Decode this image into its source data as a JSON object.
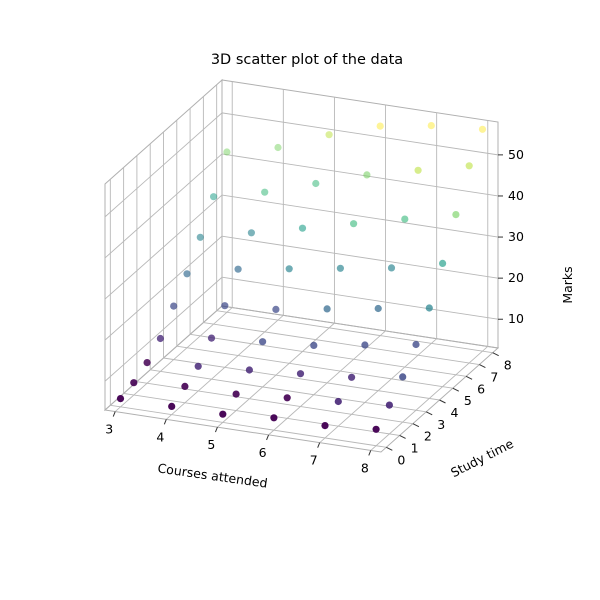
{
  "chart_data": {
    "type": "scatter",
    "title": "3D scatter plot of the data",
    "xlabel": "Courses attended",
    "ylabel": "Study time",
    "zlabel": "Marks",
    "xlim": [
      2.8,
      8.2
    ],
    "ylim": [
      -0.4,
      8.4
    ],
    "zlim": [
      3,
      58
    ],
    "xticks": [
      3,
      4,
      5,
      6,
      7,
      8
    ],
    "yticks": [
      0,
      1,
      2,
      3,
      4,
      5,
      6,
      7,
      8
    ],
    "zticks": [
      10,
      20,
      30,
      40,
      50
    ],
    "grid": true,
    "colormap": "viridis",
    "colors": [
      "#440154",
      "#482878",
      "#3e4a89",
      "#31688e",
      "#26828e",
      "#1f9e89",
      "#35b779",
      "#6ece58",
      "#b5de2b",
      "#fde725"
    ],
    "points": [
      {
        "x": 3,
        "y": 0,
        "z": 5
      },
      {
        "x": 3,
        "y": 1,
        "z": 6
      },
      {
        "x": 3,
        "y": 2,
        "z": 8
      },
      {
        "x": 3,
        "y": 3,
        "z": 11
      },
      {
        "x": 3,
        "y": 4,
        "z": 16
      },
      {
        "x": 3,
        "y": 5,
        "z": 21
      },
      {
        "x": 3,
        "y": 6,
        "z": 27
      },
      {
        "x": 3,
        "y": 7,
        "z": 34
      },
      {
        "x": 3,
        "y": 8,
        "z": 42
      },
      {
        "x": 4,
        "y": 0,
        "z": 5
      },
      {
        "x": 4,
        "y": 1,
        "z": 7
      },
      {
        "x": 4,
        "y": 2,
        "z": 9
      },
      {
        "x": 4,
        "y": 3,
        "z": 13
      },
      {
        "x": 4,
        "y": 4,
        "z": 18
      },
      {
        "x": 4,
        "y": 5,
        "z": 24
      },
      {
        "x": 4,
        "y": 6,
        "z": 30
      },
      {
        "x": 4,
        "y": 7,
        "z": 37
      },
      {
        "x": 4,
        "y": 8,
        "z": 45
      },
      {
        "x": 5,
        "y": 0,
        "z": 5
      },
      {
        "x": 5,
        "y": 1,
        "z": 7
      },
      {
        "x": 5,
        "y": 2,
        "z": 10
      },
      {
        "x": 5,
        "y": 3,
        "z": 14
      },
      {
        "x": 5,
        "y": 4,
        "z": 19
      },
      {
        "x": 5,
        "y": 5,
        "z": 26
      },
      {
        "x": 5,
        "y": 6,
        "z": 33
      },
      {
        "x": 5,
        "y": 7,
        "z": 41
      },
      {
        "x": 5,
        "y": 8,
        "z": 50
      },
      {
        "x": 6,
        "y": 0,
        "z": 6
      },
      {
        "x": 6,
        "y": 1,
        "z": 8
      },
      {
        "x": 6,
        "y": 2,
        "z": 11
      },
      {
        "x": 6,
        "y": 3,
        "z": 15
      },
      {
        "x": 6,
        "y": 4,
        "z": 21
      },
      {
        "x": 6,
        "y": 5,
        "z": 28
      },
      {
        "x": 6,
        "y": 6,
        "z": 36
      },
      {
        "x": 6,
        "y": 7,
        "z": 45
      },
      {
        "x": 6,
        "y": 8,
        "z": 54
      },
      {
        "x": 7,
        "y": 0,
        "z": 6
      },
      {
        "x": 7,
        "y": 1,
        "z": 9
      },
      {
        "x": 7,
        "y": 2,
        "z": 12
      },
      {
        "x": 7,
        "y": 3,
        "z": 17
      },
      {
        "x": 7,
        "y": 4,
        "z": 23
      },
      {
        "x": 7,
        "y": 5,
        "z": 30
      },
      {
        "x": 7,
        "y": 6,
        "z": 39
      },
      {
        "x": 7,
        "y": 7,
        "z": 48
      },
      {
        "x": 7,
        "y": 8,
        "z": 56
      },
      {
        "x": 8,
        "y": 0,
        "z": 7
      },
      {
        "x": 8,
        "y": 1,
        "z": 10
      },
      {
        "x": 8,
        "y": 2,
        "z": 14
      },
      {
        "x": 8,
        "y": 3,
        "z": 19
      },
      {
        "x": 8,
        "y": 4,
        "z": 25
      },
      {
        "x": 8,
        "y": 5,
        "z": 33
      },
      {
        "x": 8,
        "y": 6,
        "z": 42
      },
      {
        "x": 8,
        "y": 7,
        "z": 51
      },
      {
        "x": 8,
        "y": 8,
        "z": 57
      }
    ]
  }
}
